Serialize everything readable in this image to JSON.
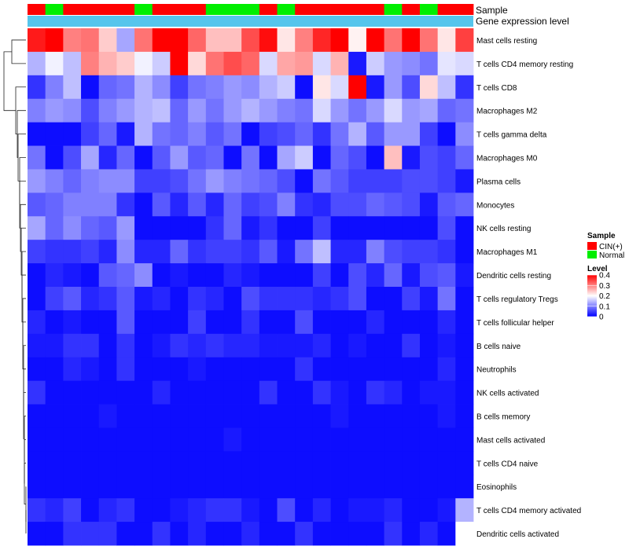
{
  "chart_data": {
    "type": "heatmap",
    "annotation_titles": {
      "sample": "Sample",
      "gene_expression": "Gene expression level"
    },
    "sample_groups": [
      "CIN",
      "Normal",
      "CIN",
      "CIN",
      "CIN",
      "CIN",
      "Normal",
      "CIN",
      "CIN",
      "CIN",
      "Normal",
      "Normal",
      "Normal",
      "CIN",
      "Normal",
      "CIN",
      "CIN",
      "CIN",
      "CIN",
      "CIN",
      "Normal",
      "CIN",
      "Normal",
      "CIN",
      "CIN"
    ],
    "rows": [
      "Mast cells resting",
      "T cells CD4 memory resting",
      "T cells CD8",
      "Macrophages M2",
      "T cells gamma delta",
      "Macrophages M0",
      "Plasma cells",
      "Monocytes",
      "NK cells resting",
      "Macrophages M1",
      "Dendritic cells resting",
      "T cells regulatory  Tregs",
      "T cells follicular helper",
      "B cells naive",
      "Neutrophils",
      "NK cells activated",
      "B cells memory",
      "Mast cells activated",
      "T cells CD4 naive",
      "Eosinophils",
      "T cells CD4 memory activated",
      "Dendritic cells activated"
    ],
    "values": [
      [
        0.38,
        0.4,
        0.3,
        0.31,
        0.24,
        0.13,
        0.31,
        0.4,
        0.4,
        0.32,
        0.25,
        0.25,
        0.34,
        0.39,
        0.22,
        0.3,
        0.37,
        0.4,
        0.21,
        0.4,
        0.31,
        0.4,
        0.31,
        0.22,
        0.35
      ],
      [
        0.14,
        0.19,
        0.15,
        0.3,
        0.26,
        0.24,
        0.19,
        0.16,
        0.4,
        0.23,
        0.31,
        0.34,
        0.32,
        0.17,
        0.27,
        0.28,
        0.17,
        0.26,
        0.02,
        0.16,
        0.12,
        0.11,
        0.09,
        0.18,
        0.17
      ],
      [
        0.04,
        0.1,
        0.15,
        0.01,
        0.08,
        0.09,
        0.14,
        0.11,
        0.05,
        0.09,
        0.1,
        0.12,
        0.11,
        0.14,
        0.16,
        0.01,
        0.22,
        0.17,
        0.4,
        0.02,
        0.12,
        0.06,
        0.23,
        0.15,
        0.04
      ],
      [
        0.1,
        0.12,
        0.11,
        0.06,
        0.1,
        0.12,
        0.14,
        0.15,
        0.08,
        0.12,
        0.09,
        0.12,
        0.14,
        0.12,
        0.1,
        0.09,
        0.17,
        0.12,
        0.09,
        0.12,
        0.17,
        0.12,
        0.13,
        0.08,
        0.09
      ],
      [
        0.01,
        0.01,
        0.01,
        0.05,
        0.08,
        0.02,
        0.14,
        0.09,
        0.08,
        0.1,
        0.07,
        0.09,
        0.01,
        0.05,
        0.06,
        0.08,
        0.04,
        0.09,
        0.14,
        0.07,
        0.12,
        0.12,
        0.05,
        0.01,
        0.11
      ],
      [
        0.09,
        0.01,
        0.06,
        0.13,
        0.03,
        0.08,
        0.01,
        0.07,
        0.12,
        0.07,
        0.08,
        0.01,
        0.09,
        0.01,
        0.13,
        0.16,
        0.01,
        0.08,
        0.06,
        0.01,
        0.25,
        0.02,
        0.06,
        0.05,
        0.08
      ],
      [
        0.12,
        0.1,
        0.08,
        0.1,
        0.11,
        0.11,
        0.05,
        0.05,
        0.06,
        0.09,
        0.12,
        0.1,
        0.09,
        0.08,
        0.06,
        0.01,
        0.09,
        0.07,
        0.05,
        0.05,
        0.05,
        0.06,
        0.06,
        0.05,
        0.02
      ],
      [
        0.07,
        0.08,
        0.1,
        0.1,
        0.1,
        0.04,
        0.01,
        0.07,
        0.03,
        0.07,
        0.03,
        0.08,
        0.05,
        0.06,
        0.1,
        0.04,
        0.03,
        0.06,
        0.06,
        0.08,
        0.07,
        0.06,
        0.02,
        0.07,
        0.08
      ],
      [
        0.13,
        0.08,
        0.11,
        0.08,
        0.07,
        0.12,
        0.01,
        0.01,
        0.01,
        0.01,
        0.04,
        0.08,
        0.02,
        0.04,
        0.01,
        0.01,
        0.05,
        0.01,
        0.01,
        0.01,
        0.01,
        0.01,
        0.01,
        0.06,
        0.01
      ],
      [
        0.05,
        0.04,
        0.04,
        0.05,
        0.03,
        0.11,
        0.03,
        0.03,
        0.08,
        0.04,
        0.05,
        0.05,
        0.04,
        0.07,
        0.02,
        0.09,
        0.15,
        0.03,
        0.03,
        0.1,
        0.06,
        0.05,
        0.05,
        0.04,
        0.01
      ],
      [
        0.01,
        0.03,
        0.02,
        0.01,
        0.07,
        0.08,
        0.11,
        0.01,
        0.02,
        0.01,
        0.01,
        0.03,
        0.02,
        0.01,
        0.01,
        0.01,
        0.05,
        0.01,
        0.06,
        0.03,
        0.08,
        0.02,
        0.06,
        0.07,
        0.02
      ],
      [
        0.01,
        0.05,
        0.07,
        0.03,
        0.04,
        0.07,
        0.02,
        0.03,
        0.01,
        0.04,
        0.03,
        0.01,
        0.06,
        0.04,
        0.04,
        0.04,
        0.03,
        0.04,
        0.06,
        0.01,
        0.01,
        0.05,
        0.02,
        0.09,
        0.01
      ],
      [
        0.03,
        0.01,
        0.02,
        0.01,
        0.01,
        0.07,
        0.01,
        0.01,
        0.01,
        0.05,
        0.01,
        0.01,
        0.04,
        0.01,
        0.01,
        0.06,
        0.01,
        0.01,
        0.01,
        0.03,
        0.01,
        0.01,
        0.01,
        0.03,
        0.01
      ],
      [
        0.02,
        0.02,
        0.04,
        0.04,
        0.01,
        0.04,
        0.01,
        0.02,
        0.04,
        0.03,
        0.04,
        0.03,
        0.03,
        0.02,
        0.02,
        0.02,
        0.03,
        0.01,
        0.02,
        0.01,
        0.01,
        0.04,
        0.01,
        0.02,
        0.01
      ],
      [
        0.01,
        0.01,
        0.03,
        0.02,
        0.01,
        0.04,
        0.01,
        0.01,
        0.01,
        0.02,
        0.01,
        0.01,
        0.01,
        0.01,
        0.01,
        0.04,
        0.01,
        0.01,
        0.01,
        0.01,
        0.01,
        0.01,
        0.01,
        0.03,
        0.01
      ],
      [
        0.04,
        0.01,
        0.01,
        0.01,
        0.01,
        0.01,
        0.01,
        0.03,
        0.01,
        0.01,
        0.01,
        0.01,
        0.01,
        0.04,
        0.01,
        0.01,
        0.04,
        0.02,
        0.01,
        0.04,
        0.03,
        0.01,
        0.02,
        0.02,
        0.01
      ],
      [
        0.01,
        0.01,
        0.01,
        0.01,
        0.02,
        0.01,
        0.01,
        0.01,
        0.01,
        0.01,
        0.01,
        0.01,
        0.01,
        0.01,
        0.01,
        0.01,
        0.01,
        0.02,
        0.01,
        0.01,
        0.01,
        0.01,
        0.01,
        0.02,
        0.01
      ],
      [
        0.01,
        0.01,
        0.01,
        0.01,
        0.01,
        0.01,
        0.01,
        0.01,
        0.01,
        0.01,
        0.01,
        0.02,
        0.01,
        0.01,
        0.01,
        0.01,
        0.01,
        0.01,
        0.01,
        0.01,
        0.01,
        0.01,
        0.01,
        0.01,
        0.01
      ],
      [
        0.01,
        0.01,
        0.01,
        0.01,
        0.01,
        0.01,
        0.01,
        0.01,
        0.01,
        0.01,
        0.01,
        0.01,
        0.01,
        0.01,
        0.01,
        0.01,
        0.01,
        0.01,
        0.01,
        0.01,
        0.01,
        0.01,
        0.01,
        0.01,
        0.01
      ],
      [
        0.01,
        0.01,
        0.01,
        0.01,
        0.01,
        0.01,
        0.01,
        0.01,
        0.01,
        0.01,
        0.01,
        0.01,
        0.01,
        0.01,
        0.01,
        0.01,
        0.01,
        0.01,
        0.01,
        0.01,
        0.01,
        0.01,
        0.01,
        0.01,
        0.01
      ],
      [
        0.04,
        0.03,
        0.05,
        0.01,
        0.03,
        0.04,
        0.01,
        0.01,
        0.02,
        0.03,
        0.04,
        0.04,
        0.02,
        0.01,
        0.06,
        0.01,
        0.03,
        0.01,
        0.02,
        0.02,
        0.03,
        0.01,
        0.01,
        0.02,
        0.14
      ],
      [
        0.01,
        0.01,
        0.04,
        0.04,
        0.04,
        0.01,
        0.01,
        0.04,
        0.01,
        0.03,
        0.01,
        0.01,
        0.03,
        0.01,
        0.01,
        0.04,
        0.01,
        0.01,
        0.01,
        0.01,
        0.04,
        0.01,
        0.03,
        0.01,
        0.2
      ]
    ],
    "legend": {
      "sample_title": "Sample",
      "sample_entries": [
        {
          "label": "CIN(+)",
          "color": "#ff0000"
        },
        {
          "label": "Normal",
          "color": "#00ee00"
        }
      ],
      "level_title": "Level",
      "level_ticks": [
        "0.4",
        "0.3",
        "0.2",
        "0.1",
        "0"
      ],
      "level_tick_values": [
        0.4,
        0.3,
        0.2,
        0.1,
        0
      ],
      "placement": "right"
    },
    "color_scale": {
      "min": 0,
      "max": 0.4,
      "low": "#0000ff",
      "mid": "#ffffff",
      "high": "#ff0000"
    },
    "annotation_colors": {
      "CIN": "#ff0000",
      "Normal": "#00ee00",
      "gene_expression_bar": "#56c5ec"
    }
  }
}
